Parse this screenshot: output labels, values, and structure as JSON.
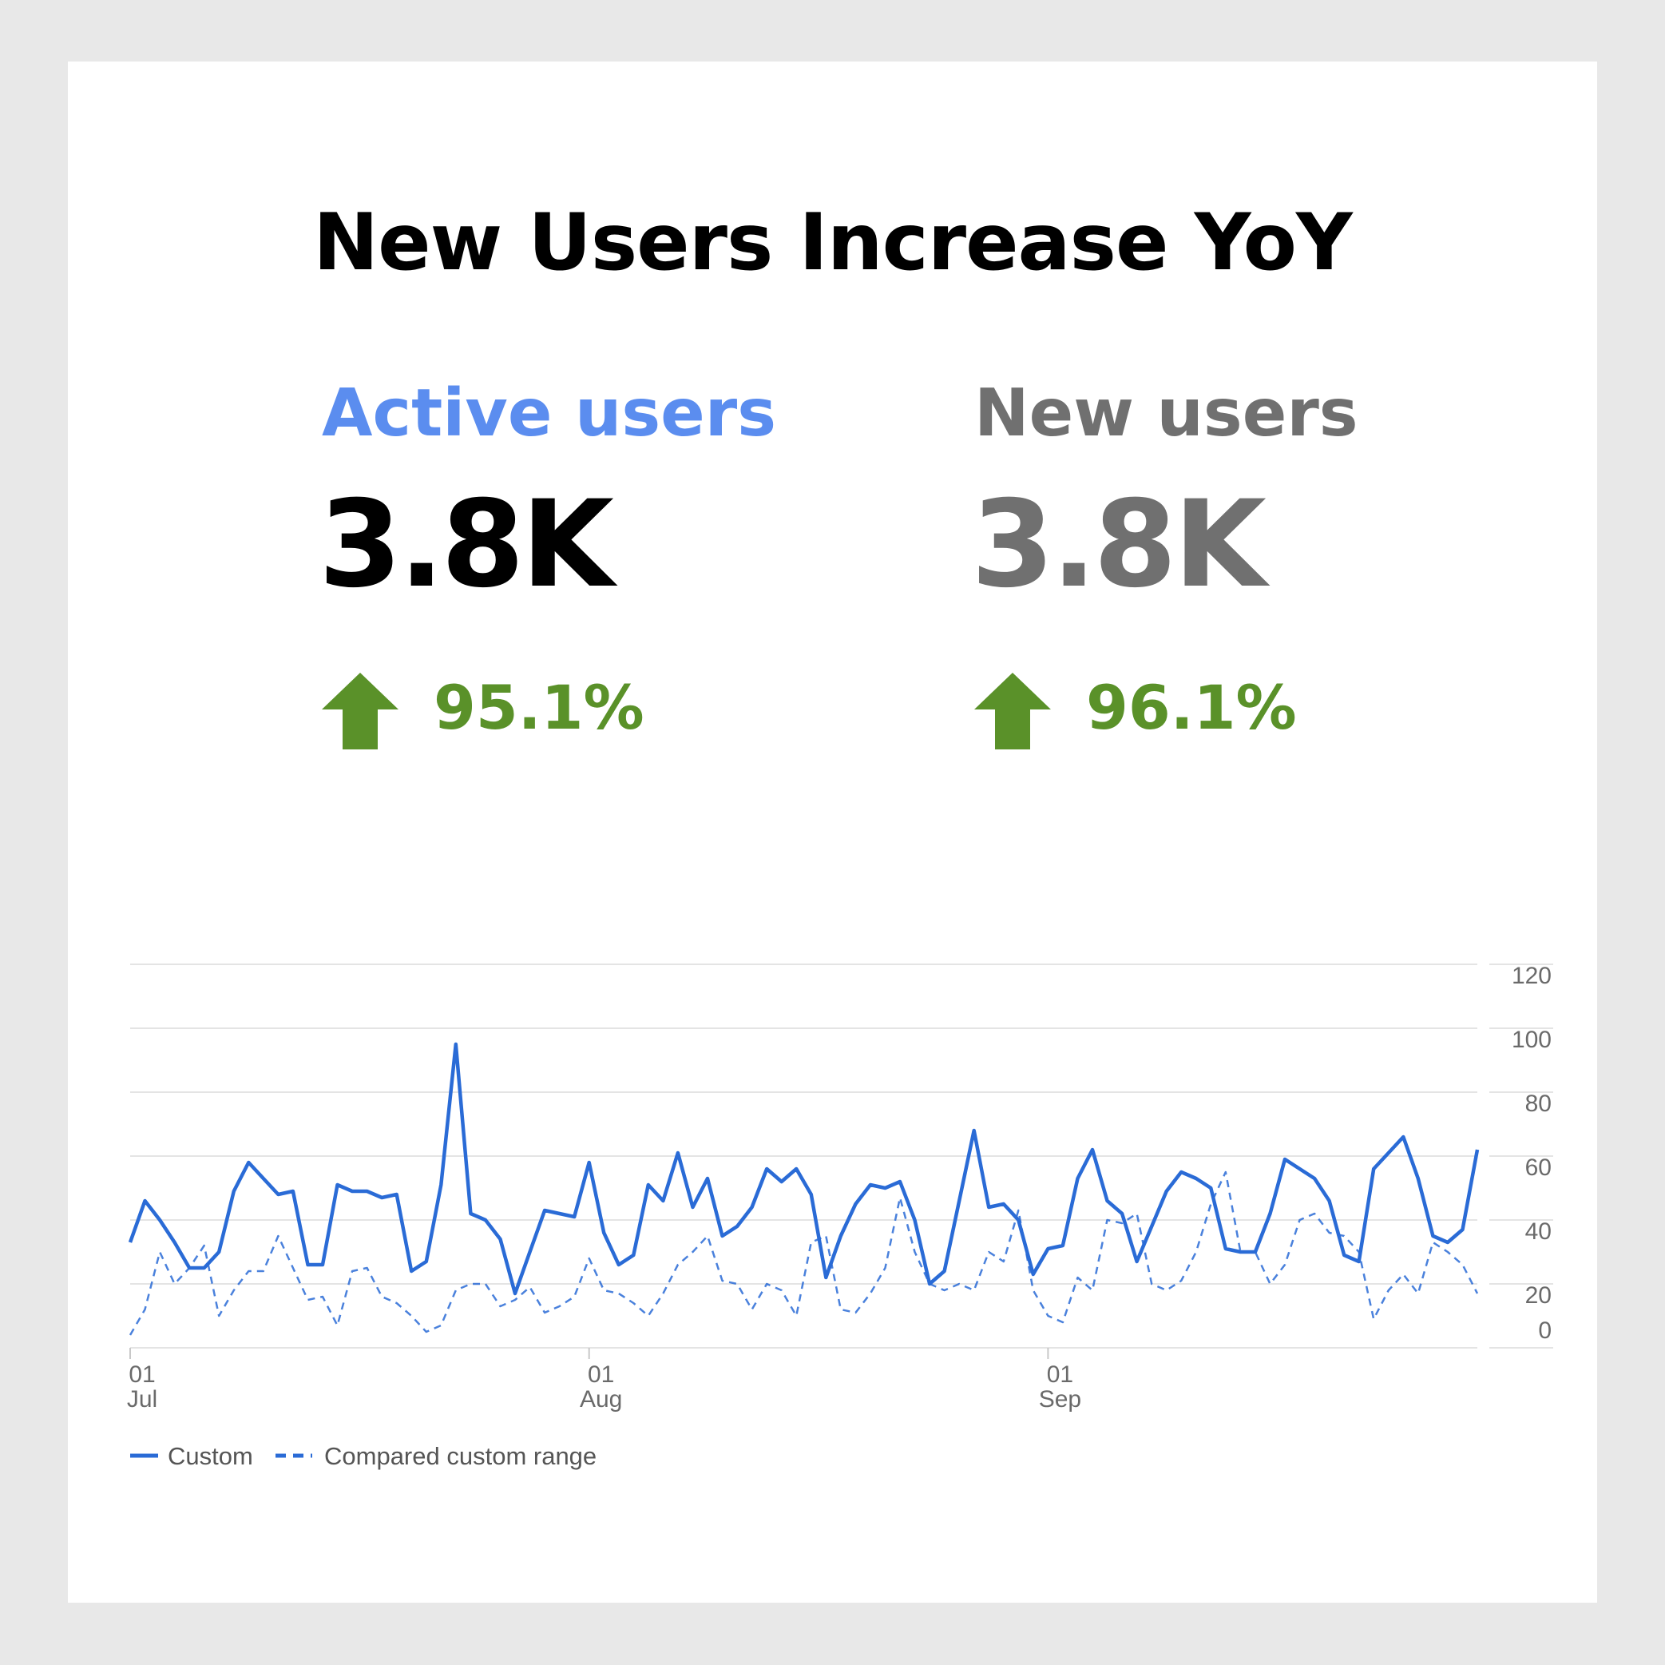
{
  "title": "New Users Increase YoY",
  "colors": {
    "active_label": "#5b8def",
    "neutral": "#707070",
    "positive": "#5a9129",
    "series": "#2a6bd6",
    "grid": "#e4e4e4",
    "tick": "#6a6a6a"
  },
  "metrics": {
    "active": {
      "label": "Active users",
      "value": "3.8K",
      "change": "95.1%",
      "direction": "up"
    },
    "new": {
      "label": "New users",
      "value": "3.8K",
      "change": "96.1%",
      "direction": "up"
    }
  },
  "chart_data": {
    "type": "line",
    "x_start": "Jul 01",
    "x_ticks": [
      {
        "index": 0,
        "day": "01",
        "month": "Jul"
      },
      {
        "index": 31,
        "day": "01",
        "month": "Aug"
      },
      {
        "index": 62,
        "day": "01",
        "month": "Sep"
      }
    ],
    "ylim": [
      0,
      120
    ],
    "yticks": [
      0,
      20,
      40,
      60,
      80,
      100,
      120
    ],
    "y_axis_side": "right",
    "grid": true,
    "legend_position": "bottom-left",
    "series": [
      {
        "name": "Custom",
        "style": "solid",
        "values": [
          33,
          46,
          40,
          33,
          25,
          25,
          30,
          49,
          58,
          53,
          48,
          49,
          26,
          26,
          51,
          49,
          49,
          47,
          48,
          24,
          27,
          51,
          95,
          42,
          40,
          34,
          17,
          30,
          43,
          42,
          41,
          58,
          36,
          26,
          29,
          51,
          46,
          61,
          44,
          53,
          35,
          38,
          44,
          56,
          52,
          56,
          48,
          22,
          35,
          45,
          51,
          50,
          52,
          40,
          20,
          24,
          46,
          68,
          44,
          45,
          40,
          23,
          31,
          32,
          53,
          62,
          46,
          42,
          27,
          38,
          49,
          55,
          53,
          50,
          31,
          30,
          30,
          42,
          59,
          56,
          53,
          46,
          29,
          27,
          56,
          61,
          66,
          53,
          35,
          33,
          37,
          62
        ]
      },
      {
        "name": "Compared custom range",
        "style": "dashed",
        "values": [
          4,
          12,
          30,
          20,
          25,
          32,
          10,
          18,
          24,
          24,
          35,
          25,
          15,
          16,
          7,
          24,
          25,
          16,
          14,
          10,
          5,
          7,
          18,
          20,
          20,
          13,
          15,
          19,
          11,
          13,
          16,
          28,
          18,
          17,
          14,
          10,
          17,
          26,
          30,
          35,
          21,
          20,
          12,
          20,
          18,
          10,
          33,
          35,
          12,
          11,
          17,
          25,
          47,
          30,
          20,
          18,
          20,
          18,
          30,
          27,
          43,
          18,
          10,
          8,
          22,
          18,
          40,
          39,
          42,
          20,
          18,
          21,
          30,
          45,
          55,
          30,
          30,
          20,
          26,
          40,
          42,
          36,
          35,
          30,
          9,
          18,
          23,
          17,
          33,
          30,
          26,
          17
        ]
      }
    ]
  }
}
